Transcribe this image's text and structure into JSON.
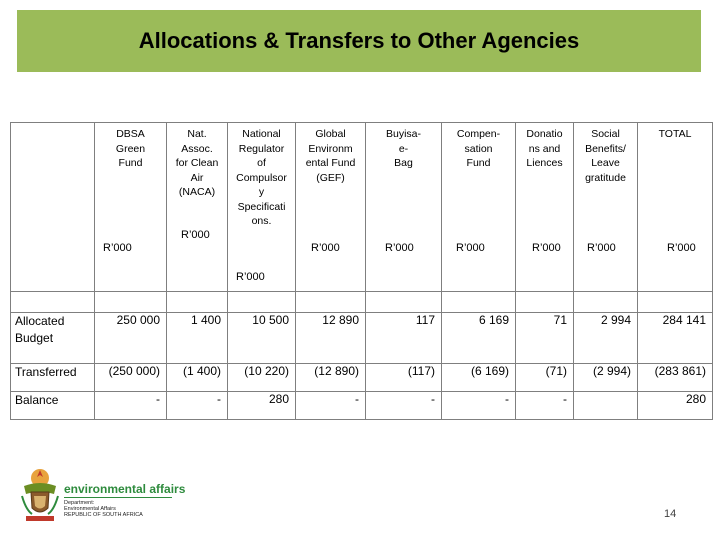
{
  "title": "Allocations & Transfers to Other Agencies",
  "columns": [
    {
      "name": "DBSA\nGreen\nFund",
      "unit": "R’000"
    },
    {
      "name": "Nat.\nAssoc.\nfor Clean\nAir\n(NACA)",
      "unit": "R’000"
    },
    {
      "name": "National\nRegulator\nof\nCompulsor\ny\nSpecificati\nons.",
      "unit": "R’000"
    },
    {
      "name": "Global\nEnvironm\nental Fund\n(GEF)",
      "unit": "R’000"
    },
    {
      "name": "Buyisa-\ne-\nBag",
      "unit": "R’000"
    },
    {
      "name": "Compen-\nsation\nFund",
      "unit": "R’000"
    },
    {
      "name": "Donatio\nns and\nLiences",
      "unit": "R’000"
    },
    {
      "name": "Social\nBenefits/\nLeave\ngratitude",
      "unit": "R’000"
    },
    {
      "name": "TOTAL",
      "unit": "R’000"
    }
  ],
  "rows": [
    {
      "label": "Allocated\nBudget",
      "values": [
        "250 000",
        "1 400",
        "10 500",
        "12 890",
        "117",
        "6 169",
        "71",
        "2 994",
        "284 141"
      ]
    },
    {
      "label": "Transferred",
      "values": [
        "(250 000)",
        "(1 400)",
        "(10 220)",
        "(12 890)",
        "(117)",
        "(6 169)",
        "(71)",
        "(2 994)",
        "(283 861)"
      ]
    },
    {
      "label": "Balance",
      "values": [
        "-",
        "-",
        "280",
        "-",
        "-",
        "-",
        "-",
        "",
        "280"
      ]
    }
  ],
  "logo": {
    "main": "environmental affairs",
    "sub1": "Department:",
    "sub2": "Environmental Affairs",
    "sub3": "REPUBLIC OF SOUTH AFRICA"
  },
  "page_number": "14"
}
